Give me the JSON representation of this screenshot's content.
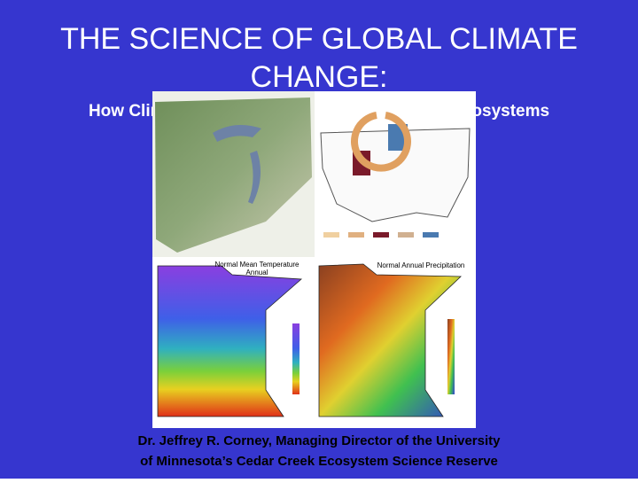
{
  "header": {
    "title_lines": [
      "THE SCIENCE OF GLOBAL CLIMATE",
      "CHANGE:"
    ],
    "subtitle": "How Climate Change May Affect Minnesota's Ecosystems"
  },
  "maps": {
    "temperature_title": [
      "Normal Mean Temperature",
      "Annual"
    ],
    "precipitation_title": "Normal Annual Precipitation"
  },
  "footer": {
    "lines": [
      "Dr. Jeffrey R. Corney, Managing Director of the University",
      "of Minnesota’s Cedar Creek Ecosystem Science Reserve"
    ]
  }
}
